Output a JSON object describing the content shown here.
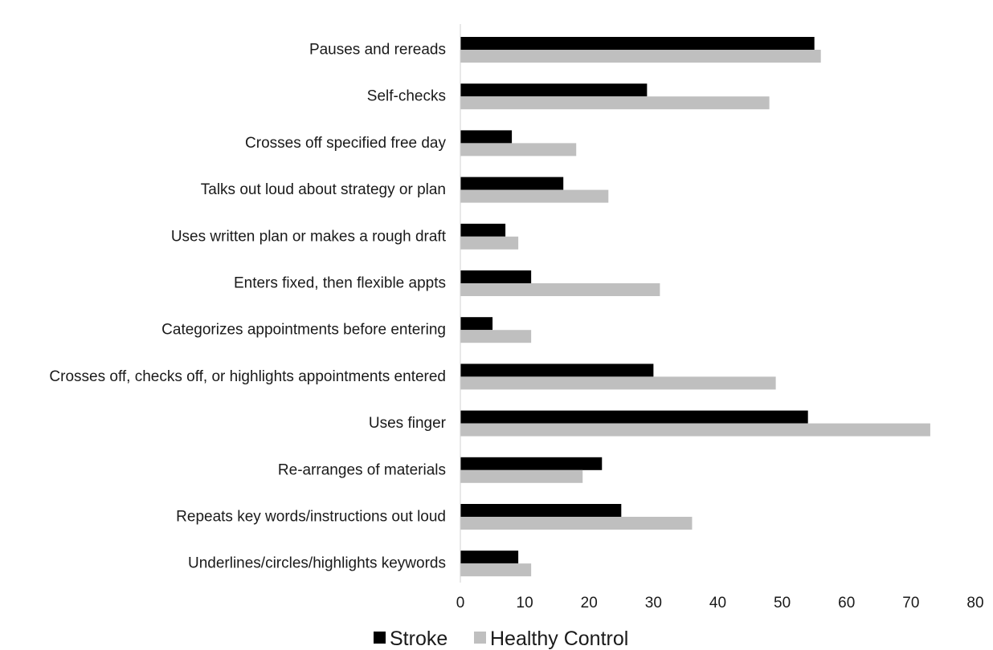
{
  "chart_data": {
    "type": "bar",
    "orientation": "horizontal",
    "title": "",
    "xlabel": "",
    "ylabel": "",
    "categories": [
      "Pauses and rereads",
      "Self-checks",
      "Crosses off specified free day",
      "Talks out loud about strategy or plan",
      "Uses written plan or makes a rough draft",
      "Enters fixed, then flexible appts",
      "Categorizes appointments before entering",
      "Crosses off, checks off, or highlights appointments entered",
      "Uses finger",
      "Re-arranges of materials",
      "Repeats key words/instructions out loud",
      "Underlines/circles/highlights keywords"
    ],
    "series": [
      {
        "name": "Stroke",
        "color": "#000000",
        "values": [
          55,
          29,
          8,
          16,
          7,
          11,
          5,
          30,
          54,
          22,
          25,
          9
        ]
      },
      {
        "name": "Healthy Control",
        "color": "#bfbfbf",
        "values": [
          56,
          48,
          18,
          23,
          9,
          31,
          11,
          49,
          73,
          19,
          36,
          11
        ]
      }
    ],
    "xlim": [
      0,
      80
    ],
    "xticks": [
      0,
      10,
      20,
      30,
      40,
      50,
      60,
      70,
      80
    ],
    "grid": false,
    "legend_position": "bottom-center"
  }
}
